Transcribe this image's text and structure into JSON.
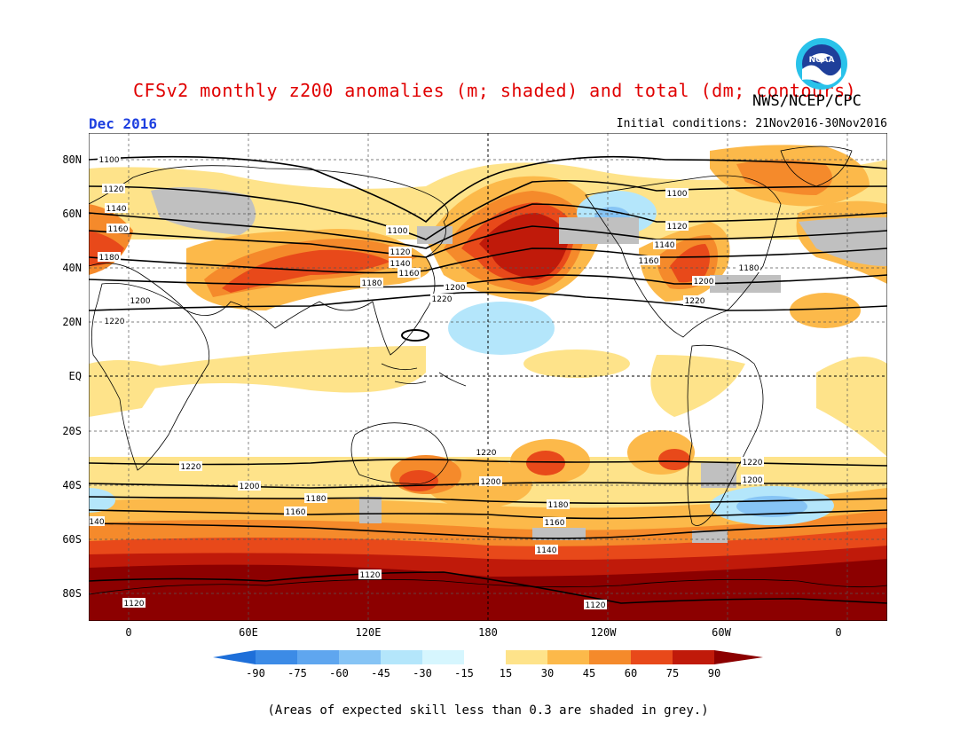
{
  "title": "CFSv2 monthly z200 anomalies (m; shaded) and total (dm; contours)",
  "agency": "NWS/NCEP/CPC",
  "logo_text": "NOAA",
  "month": "Dec 2016",
  "initial_conditions": "Initial conditions: 21Nov2016-30Nov2016",
  "lat_labels": [
    "80N",
    "60N",
    "40N",
    "20N",
    "EQ",
    "20S",
    "40S",
    "60S",
    "80S"
  ],
  "lon_labels": [
    "0",
    "60E",
    "120E",
    "180",
    "120W",
    "60W",
    "0"
  ],
  "colorbar": {
    "labels": [
      "-90",
      "-75",
      "-60",
      "-45",
      "-30",
      "-15",
      "15",
      "30",
      "45",
      "60",
      "75",
      "90"
    ],
    "colors": [
      "#1e6fd9",
      "#3c8be6",
      "#5fa6ef",
      "#86c4f5",
      "#b4e6fb",
      "#ffffff",
      "#fee38a",
      "#fcb94a",
      "#f58a2b",
      "#e8491a",
      "#c01a0a",
      "#8c0000"
    ]
  },
  "contours": {
    "north": [
      "1100",
      "1120",
      "1140",
      "1160",
      "1180",
      "1200",
      "1220"
    ],
    "south": [
      "1220",
      "1200",
      "1180",
      "1160",
      "1140",
      "1120"
    ]
  },
  "footnote": "(Areas of expected skill less than 0.3 are shaded in grey.)"
}
